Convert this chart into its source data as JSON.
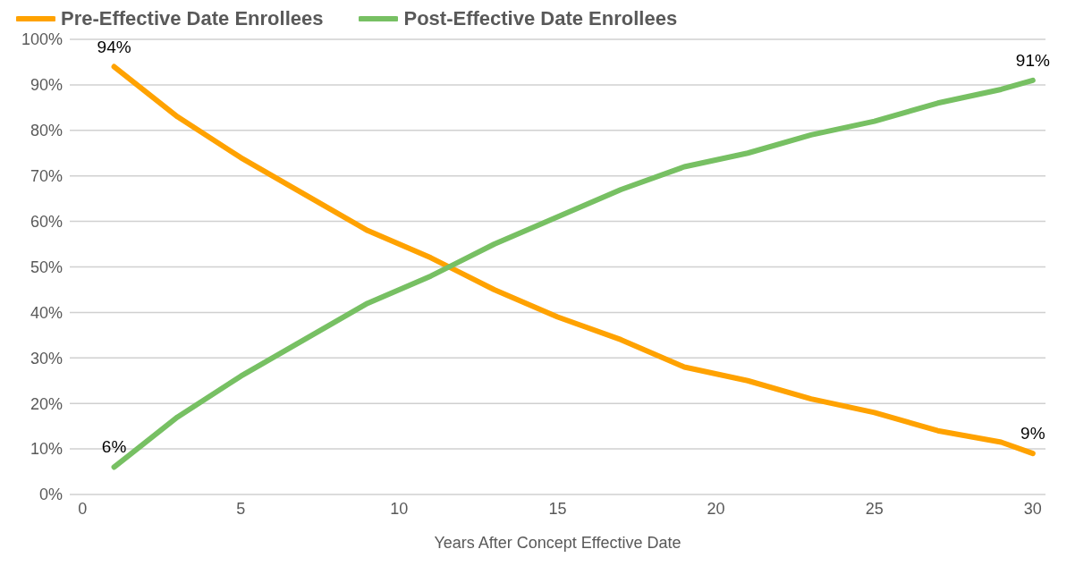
{
  "chart_data": {
    "type": "line",
    "xlabel": "Years After Concept  Effective Date",
    "x": [
      1,
      3,
      5,
      7,
      9,
      11,
      13,
      15,
      17,
      19,
      21,
      23,
      25,
      27,
      29,
      30
    ],
    "series": [
      {
        "name": "Pre-Effective Date Enrollees",
        "color": "#ffa200",
        "values": [
          94,
          83,
          74,
          66,
          58,
          52,
          45,
          39,
          34,
          28,
          25,
          21,
          18,
          14,
          11.5,
          9
        ],
        "value_labels": [
          "94%",
          null,
          null,
          null,
          null,
          null,
          null,
          null,
          null,
          null,
          null,
          null,
          null,
          null,
          null,
          "9%"
        ]
      },
      {
        "name": "Post-Effective Date Enrollees",
        "color": "#77c063",
        "values": [
          6,
          17,
          26,
          34,
          42,
          48,
          55,
          61,
          67,
          72,
          75,
          79,
          82,
          86,
          89,
          91
        ],
        "value_labels": [
          "6%",
          null,
          null,
          null,
          null,
          null,
          null,
          null,
          null,
          null,
          null,
          null,
          null,
          null,
          null,
          "91%"
        ]
      }
    ],
    "xlim": [
      -0.4,
      30.4
    ],
    "xticks": [
      0,
      5,
      10,
      15,
      20,
      25,
      30
    ],
    "ylim": [
      0,
      100
    ],
    "yticks": [
      {
        "value": 0,
        "label": "0%"
      },
      {
        "value": 10,
        "label": "10%"
      },
      {
        "value": 20,
        "label": "20%"
      },
      {
        "value": 30,
        "label": "30%"
      },
      {
        "value": 40,
        "label": "40%"
      },
      {
        "value": 50,
        "label": "50%"
      },
      {
        "value": 60,
        "label": "60%"
      },
      {
        "value": 70,
        "label": "70%"
      },
      {
        "value": 80,
        "label": "80%"
      },
      {
        "value": 90,
        "label": "90%"
      },
      {
        "value": 100,
        "label": "100%"
      }
    ],
    "grid": "y",
    "legend": "top left",
    "marker": "none",
    "line_style": "solid"
  }
}
